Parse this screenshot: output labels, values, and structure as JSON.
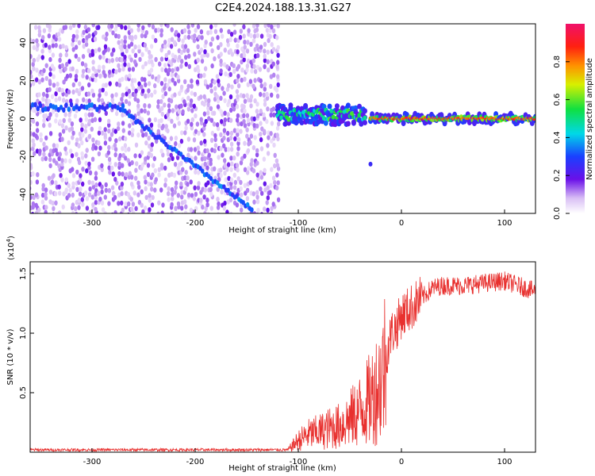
{
  "title": "C2E4.2024.188.13.31.G27",
  "colors": {
    "red_line": "#e8302e",
    "purple": "#5a10e0",
    "light_purple": "#c9a6f2"
  },
  "chart_data": [
    {
      "type": "heatmap",
      "xlabel": "Height of straight line (km)",
      "ylabel": "Frequency (Hz)",
      "xlim": [
        -360,
        130
      ],
      "ylim": [
        -50,
        50
      ],
      "x_ticks": [
        -300,
        -200,
        -100,
        0,
        100
      ],
      "y_ticks": [
        -40,
        -20,
        0,
        20,
        40
      ],
      "colorbar": {
        "label": "Normalized spectral amplitude",
        "range": [
          0.0,
          1.0
        ],
        "ticks": [
          0.0,
          0.2,
          0.4,
          0.6,
          0.8
        ],
        "colormap": "rainbow (white-violet-blue-cyan-green-yellow-orange-red-magenta)"
      },
      "features": [
        {
          "name": "noise background",
          "x_range": [
            -360,
            -120
          ],
          "amplitude": 0.1
        },
        {
          "name": "near-zero line",
          "x_range": [
            -360,
            -270
          ],
          "freq_hz": 6,
          "amplitude": 0.25
        },
        {
          "name": "descending streak",
          "x_start": -270,
          "x_end": -145,
          "freq_start_hz": 4,
          "freq_end_hz": -48,
          "amplitude": 0.25
        },
        {
          "name": "signal band",
          "x_range": [
            -120,
            -35
          ],
          "freq_hz": 2,
          "amplitude": 0.4
        },
        {
          "name": "stable carrier",
          "x_range": [
            -30,
            130
          ],
          "freq_hz": 0,
          "amplitude": 0.8
        },
        {
          "name": "isolated spot",
          "x": -30,
          "freq_hz": -24,
          "amplitude": 0.15
        }
      ]
    },
    {
      "type": "line",
      "xlabel": "Height of straight line (km)",
      "ylabel": "SNR (10 * v/v)",
      "y_multiplier": "(x10",
      "y_multiplier_exp": "4",
      "y_multiplier_close": ")",
      "xlim": [
        -360,
        130
      ],
      "ylim": [
        0,
        1.6
      ],
      "x_ticks": [
        -300,
        -200,
        -100,
        0,
        100
      ],
      "y_ticks": [
        0.5,
        1.0,
        1.5
      ],
      "series": [
        {
          "x": [
            -360,
            -300,
            -200,
            -110,
            -100,
            -90,
            -80,
            -70,
            -60,
            -50,
            -40,
            -30,
            -20,
            -15,
            -10,
            -5,
            0,
            10,
            20,
            30,
            40,
            60,
            80,
            100,
            120,
            130
          ],
          "y": [
            0.02,
            0.02,
            0.02,
            0.02,
            0.1,
            0.15,
            0.17,
            0.2,
            0.22,
            0.28,
            0.35,
            0.45,
            0.6,
            0.8,
            1.0,
            1.05,
            1.15,
            1.22,
            1.3,
            1.38,
            1.4,
            1.4,
            1.42,
            1.44,
            1.38,
            1.35
          ]
        }
      ]
    }
  ]
}
